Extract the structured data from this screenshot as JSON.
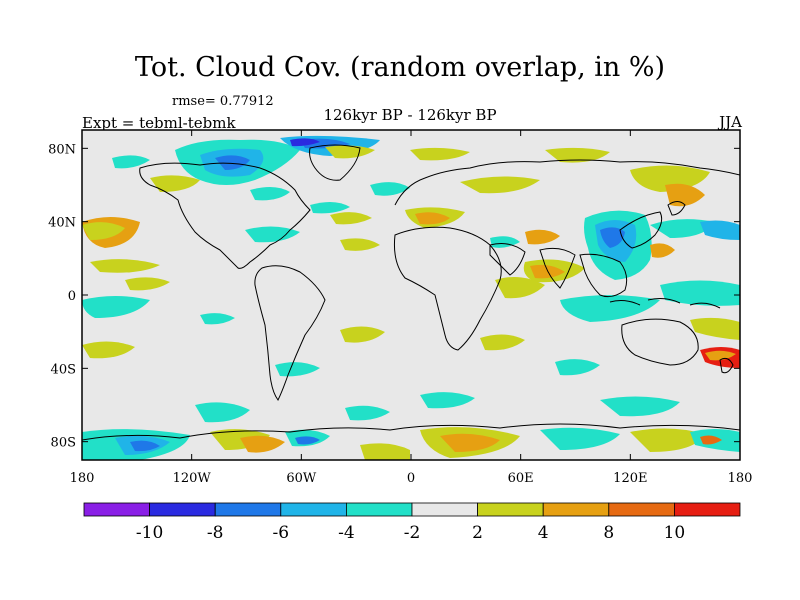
{
  "title": "Tot. Cloud Cov. (random overlap, in %)",
  "rmse": "rmse= 0.77912",
  "center_label": "126kyr BP - 126kyr BP",
  "expt": "Expt = tebml-tebmk",
  "season": "JJA",
  "axes": {
    "x_ticks": [
      {
        "lon": -180,
        "label": "180"
      },
      {
        "lon": -120,
        "label": "120W"
      },
      {
        "lon": -60,
        "label": "60W"
      },
      {
        "lon": 0,
        "label": "0"
      },
      {
        "lon": 60,
        "label": "60E"
      },
      {
        "lon": 120,
        "label": "120E"
      },
      {
        "lon": 180,
        "label": "180"
      }
    ],
    "y_ticks": [
      {
        "lat": 80,
        "label": "80N"
      },
      {
        "lat": 40,
        "label": "40N"
      },
      {
        "lat": 0,
        "label": "0"
      },
      {
        "lat": -40,
        "label": "40S"
      },
      {
        "lat": -80,
        "label": "80S"
      }
    ],
    "lon_range": [
      -180,
      180
    ],
    "lat_range": [
      -90,
      90
    ]
  },
  "colorbar": {
    "levels": [
      "-10",
      "-8",
      "-6",
      "-4",
      "-2",
      "2",
      "4",
      "8",
      "10"
    ],
    "colors": [
      "#8a1fe6",
      "#2a2ae0",
      "#1f78e8",
      "#20b4e8",
      "#22e0c8",
      "#e8e8e8",
      "#c8d21e",
      "#e6a012",
      "#e66a12",
      "#e61e12"
    ]
  },
  "background_color": "#e8e8e8"
}
